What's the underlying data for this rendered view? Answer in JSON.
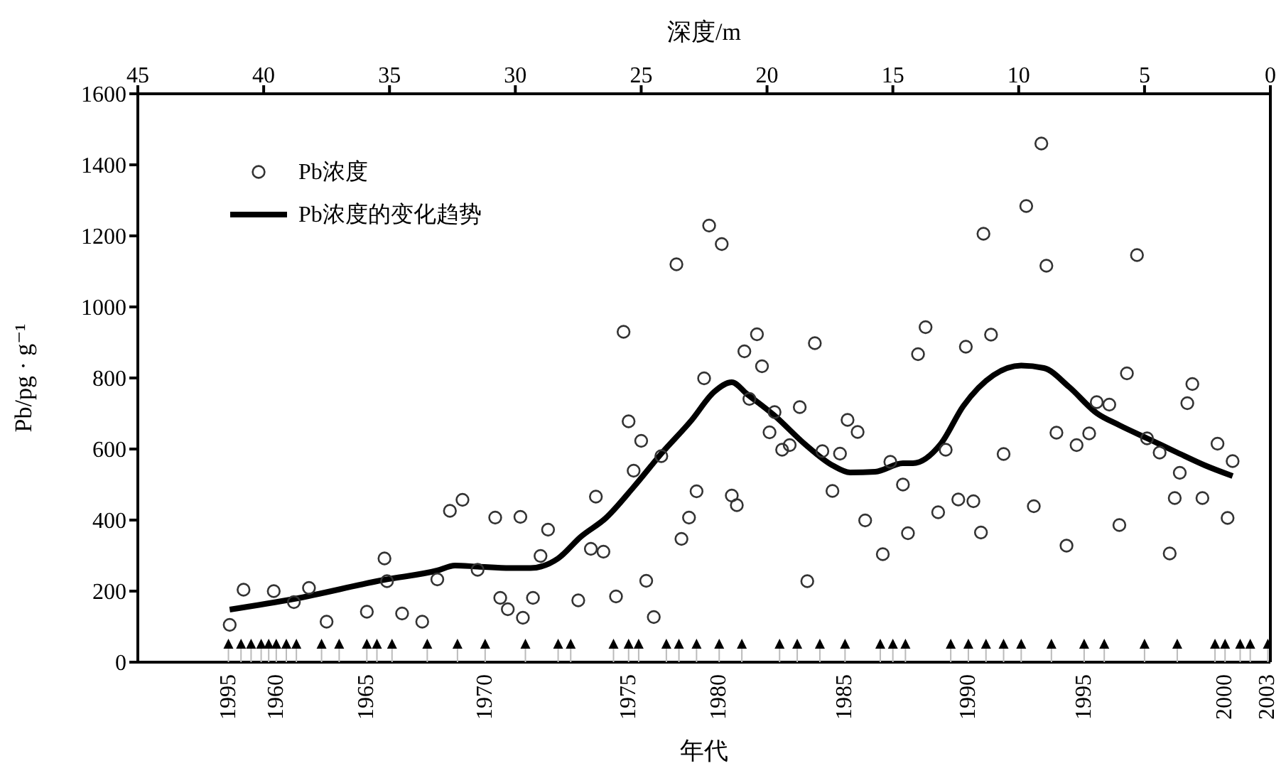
{
  "chart_data": {
    "type": "scatter",
    "xlabel": "深度/m",
    "ylabel": "Pb/pg · g⁻¹",
    "xlim": [
      45,
      0
    ],
    "ylim": [
      0,
      1600
    ],
    "yticks": [
      0,
      200,
      400,
      600,
      800,
      1000,
      1200,
      1400,
      1600
    ],
    "xticks": [
      45,
      40,
      35,
      30,
      25,
      20,
      15,
      10,
      5,
      0
    ],
    "annotations": [
      "年代",
      {
        "text": "1995",
        "x": 41.4,
        "y": 50
      },
      {
        "text": "1960",
        "x": 39.5,
        "y": 50
      },
      {
        "text": "1965",
        "x": 35.9,
        "y": 50
      },
      {
        "text": "1970",
        "x": 31.2,
        "y": 50
      },
      {
        "text": "1975",
        "x": 25.5,
        "y": 50
      },
      {
        "text": "1980",
        "x": 21.9,
        "y": 50
      },
      {
        "text": "1985",
        "x": 16.9,
        "y": 50
      },
      {
        "text": "1990",
        "x": 12.0,
        "y": 50
      },
      {
        "text": "1995",
        "x": 7.4,
        "y": 50
      },
      {
        "text": "2000",
        "x": 1.8,
        "y": 50
      },
      {
        "text": "2003",
        "x": 0.1,
        "y": 50
      }
    ],
    "grid": false,
    "legend": "top left",
    "series": [
      {
        "name": "Pb浓度",
        "marker": "circle",
        "color": "#333333",
        "x": [
          41.35,
          40.8,
          39.6,
          38.8,
          38.2,
          37.5,
          35.9,
          35.2,
          35.1,
          34.5,
          33.7,
          33.1,
          32.6,
          32.1,
          31.5,
          30.8,
          30.6,
          30.3,
          29.8,
          29.7,
          29.3,
          28.7,
          29.0,
          27.5,
          27.0,
          26.8,
          26.5,
          26.0,
          25.7,
          25.5,
          25.3,
          25.0,
          24.8,
          24.5,
          24.2,
          23.6,
          23.4,
          23.1,
          22.8,
          22.5,
          22.3,
          21.8,
          21.4,
          21.2,
          20.9,
          20.7,
          20.4,
          20.2,
          19.9,
          19.7,
          19.4,
          19.1,
          18.7,
          18.4,
          18.1,
          17.8,
          17.4,
          17.1,
          16.8,
          16.4,
          16.1,
          15.4,
          15.1,
          14.6,
          14.4,
          14.0,
          13.7,
          13.2,
          12.9,
          12.4,
          12.1,
          11.8,
          11.5,
          11.4,
          11.1,
          10.6,
          9.7,
          9.4,
          9.1,
          8.9,
          8.5,
          8.1,
          7.7,
          7.2,
          6.9,
          6.4,
          6.0,
          5.7,
          5.3,
          4.9,
          4.4,
          4.0,
          3.8,
          3.6,
          3.3,
          3.1,
          2.7,
          2.1,
          1.7,
          1.5
        ],
        "values": [
          105,
          204,
          200,
          169,
          209,
          114,
          142,
          292,
          228,
          137,
          114,
          233,
          426,
          457,
          260,
          407,
          181,
          149,
          409,
          125,
          181,
          373,
          299,
          174,
          319,
          466,
          311,
          185,
          930,
          678,
          539,
          623,
          229,
          127,
          580,
          1120,
          347,
          407,
          481,
          799,
          1229,
          1177,
          469,
          442,
          875,
          741,
          923,
          833,
          647,
          704,
          598,
          611,
          718,
          228,
          898,
          594,
          482,
          587,
          682,
          648,
          399,
          304,
          564,
          500,
          363,
          867,
          943,
          422,
          598,
          458,
          888,
          453,
          365,
          1206,
          922,
          586,
          1284,
          439,
          1460,
          1116,
          646,
          328,
          611,
          644,
          732,
          725,
          386,
          813,
          1146,
          630,
          590,
          306,
          462,
          533,
          729,
          783,
          462,
          615,
          406,
          566
        ]
      },
      {
        "name": "Pb浓度的变化趋势",
        "type": "line",
        "marker": "none",
        "line_style": "solid",
        "color": "#000000",
        "x": [
          41.35,
          38.8,
          35.2,
          33.1,
          32.4,
          31.5,
          30.2,
          29.4,
          28.3,
          27.4,
          26.4,
          25.3,
          24.2,
          23.0,
          22.1,
          21.4,
          20.8,
          19.7,
          18.5,
          17.4,
          16.7,
          15.7,
          14.6,
          14.2,
          13.1,
          12.2,
          11.0,
          9.9,
          9.0,
          8.0,
          6.9,
          6.0,
          4.8,
          3.7,
          2.6,
          1.5
        ],
        "values": [
          148,
          178,
          232,
          258,
          272,
          269,
          265,
          265,
          292,
          353,
          406,
          493,
          587,
          681,
          761,
          788,
          755,
          694,
          614,
          554,
          534,
          536,
          560,
          560,
          614,
          721,
          808,
          835,
          828,
          775,
          701,
          667,
          627,
          590,
          554,
          524
        ]
      },
      {
        "type": "scatter",
        "marker": "triangle",
        "color": "#000000",
        "x": [
          41.4,
          40.9,
          40.5,
          40.1,
          39.8,
          39.5,
          39.1,
          38.7,
          37.7,
          37.0,
          35.9,
          35.5,
          34.9,
          33.5,
          32.3,
          31.2,
          29.6,
          28.3,
          27.8,
          26.1,
          25.5,
          25.1,
          24.0,
          23.5,
          22.8,
          21.9,
          21.0,
          19.5,
          18.8,
          17.9,
          16.9,
          15.5,
          15.0,
          14.5,
          12.7,
          12.0,
          11.3,
          10.6,
          9.9,
          8.7,
          7.4,
          6.6,
          5.0,
          3.7,
          2.2,
          1.8,
          1.2,
          0.8,
          0.1
        ],
        "values": [
          50,
          50,
          50,
          50,
          50,
          50,
          50,
          50,
          50,
          50,
          50,
          50,
          50,
          50,
          50,
          50,
          50,
          50,
          50,
          50,
          50,
          50,
          50,
          50,
          50,
          50,
          50,
          50,
          50,
          50,
          50,
          50,
          50,
          50,
          50,
          50,
          50,
          50,
          50,
          50,
          50,
          50,
          50,
          50,
          50,
          50,
          50,
          50,
          50
        ]
      }
    ]
  }
}
